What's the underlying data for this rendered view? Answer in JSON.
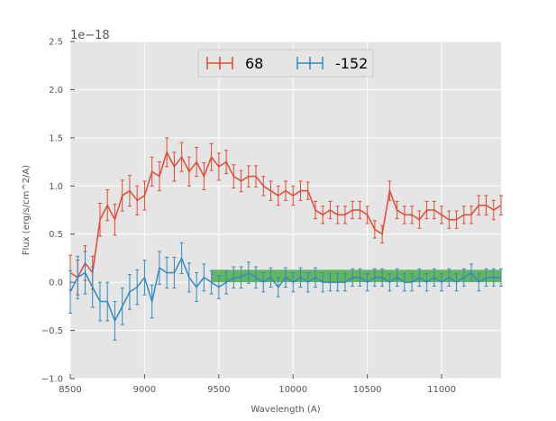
{
  "chart_data": {
    "type": "line",
    "title": "",
    "xlabel": "Wavelength (A)",
    "ylabel": "Flux (erg/s/cm^2/A)",
    "y_offset_label": "1e−18",
    "xlim": [
      8500,
      11400
    ],
    "ylim": [
      -1.0,
      2.5
    ],
    "xticks": [
      8500,
      9000,
      9500,
      10000,
      10500,
      11000
    ],
    "xtick_labels": [
      "8500",
      "9000",
      "9500",
      "10000",
      "10500",
      "11000"
    ],
    "yticks": [
      -1.0,
      -0.5,
      0.0,
      0.5,
      1.0,
      1.5,
      2.0,
      2.5
    ],
    "ytick_labels": [
      "−1.0",
      "−0.5",
      "0.0",
      "0.5",
      "1.0",
      "1.5",
      "2.0",
      "2.5"
    ],
    "grid": true,
    "legend_location": "top-center",
    "band": {
      "x_start": 9450,
      "x_end": 11400,
      "y_low": 0.0,
      "y_high": 0.13,
      "color": "#2ca02c"
    },
    "series": [
      {
        "name": "68",
        "color": "#e24a33",
        "errorbar": true,
        "x": [
          8500,
          8550,
          8600,
          8650,
          8700,
          8750,
          8800,
          8850,
          8900,
          8950,
          9000,
          9050,
          9100,
          9150,
          9200,
          9250,
          9300,
          9350,
          9400,
          9450,
          9500,
          9550,
          9600,
          9650,
          9700,
          9750,
          9800,
          9850,
          9900,
          9950,
          10000,
          10050,
          10100,
          10150,
          10200,
          10250,
          10300,
          10350,
          10400,
          10450,
          10500,
          10550,
          10600,
          10650,
          10700,
          10750,
          10800,
          10850,
          10900,
          10950,
          11000,
          11050,
          11100,
          11150,
          11200,
          11250,
          11300,
          11350,
          11400
        ],
        "y": [
          0.1,
          0.05,
          0.2,
          0.1,
          0.65,
          0.8,
          0.65,
          0.9,
          0.95,
          0.85,
          0.9,
          1.15,
          1.1,
          1.35,
          1.2,
          1.3,
          1.15,
          1.25,
          1.1,
          1.3,
          1.2,
          1.25,
          1.1,
          1.05,
          1.1,
          1.1,
          1.0,
          0.95,
          0.9,
          0.95,
          0.9,
          0.95,
          0.95,
          0.75,
          0.7,
          0.75,
          0.7,
          0.7,
          0.75,
          0.75,
          0.7,
          0.55,
          0.5,
          0.95,
          0.75,
          0.7,
          0.7,
          0.65,
          0.75,
          0.75,
          0.7,
          0.65,
          0.65,
          0.7,
          0.7,
          0.8,
          0.8,
          0.75,
          0.8
        ],
        "err": [
          0.18,
          0.18,
          0.18,
          0.17,
          0.17,
          0.16,
          0.16,
          0.16,
          0.16,
          0.15,
          0.15,
          0.15,
          0.15,
          0.15,
          0.15,
          0.15,
          0.15,
          0.15,
          0.14,
          0.14,
          0.14,
          0.12,
          0.12,
          0.11,
          0.11,
          0.11,
          0.1,
          0.1,
          0.1,
          0.1,
          0.1,
          0.1,
          0.09,
          0.09,
          0.09,
          0.09,
          0.09,
          0.09,
          0.09,
          0.09,
          0.09,
          0.09,
          0.09,
          0.1,
          0.09,
          0.09,
          0.09,
          0.09,
          0.09,
          0.09,
          0.09,
          0.09,
          0.09,
          0.09,
          0.09,
          0.1,
          0.1,
          0.1,
          0.1
        ]
      },
      {
        "name": "-152",
        "color": "#348abd",
        "errorbar": true,
        "x": [
          8500,
          8550,
          8600,
          8650,
          8700,
          8750,
          8800,
          8850,
          8900,
          8950,
          9000,
          9050,
          9100,
          9150,
          9200,
          9250,
          9300,
          9350,
          9400,
          9450,
          9500,
          9550,
          9600,
          9650,
          9700,
          9750,
          9800,
          9850,
          9900,
          9950,
          10000,
          10050,
          10100,
          10150,
          10200,
          10250,
          10300,
          10350,
          10400,
          10450,
          10500,
          10550,
          10600,
          10650,
          10700,
          10750,
          10800,
          10850,
          10900,
          10950,
          11000,
          11050,
          11100,
          11150,
          11200,
          11250,
          11300,
          11350,
          11400
        ],
        "y": [
          -0.1,
          0.05,
          0.1,
          -0.05,
          -0.2,
          -0.2,
          -0.4,
          -0.25,
          -0.1,
          -0.05,
          0.05,
          -0.2,
          0.15,
          0.1,
          0.1,
          0.25,
          0.05,
          -0.05,
          0.05,
          0.0,
          -0.05,
          0.0,
          0.05,
          0.05,
          0.1,
          0.05,
          0.0,
          0.05,
          -0.05,
          0.05,
          0.0,
          0.05,
          0.0,
          0.05,
          0.0,
          0.0,
          0.0,
          0.0,
          0.05,
          0.05,
          0.0,
          0.05,
          0.05,
          0.0,
          0.05,
          0.0,
          0.0,
          0.05,
          0.0,
          0.05,
          0.0,
          0.05,
          0.0,
          0.05,
          0.1,
          0.0,
          0.05,
          0.05,
          0.05
        ],
        "err": [
          0.22,
          0.22,
          0.22,
          0.21,
          0.2,
          0.2,
          0.2,
          0.19,
          0.18,
          0.18,
          0.18,
          0.17,
          0.17,
          0.16,
          0.16,
          0.16,
          0.15,
          0.15,
          0.14,
          0.12,
          0.12,
          0.12,
          0.11,
          0.11,
          0.11,
          0.11,
          0.1,
          0.1,
          0.1,
          0.1,
          0.1,
          0.1,
          0.1,
          0.1,
          0.1,
          0.09,
          0.09,
          0.09,
          0.09,
          0.09,
          0.09,
          0.09,
          0.09,
          0.09,
          0.09,
          0.09,
          0.09,
          0.09,
          0.09,
          0.09,
          0.09,
          0.09,
          0.09,
          0.09,
          0.09,
          0.09,
          0.09,
          0.09,
          0.09
        ]
      }
    ]
  }
}
